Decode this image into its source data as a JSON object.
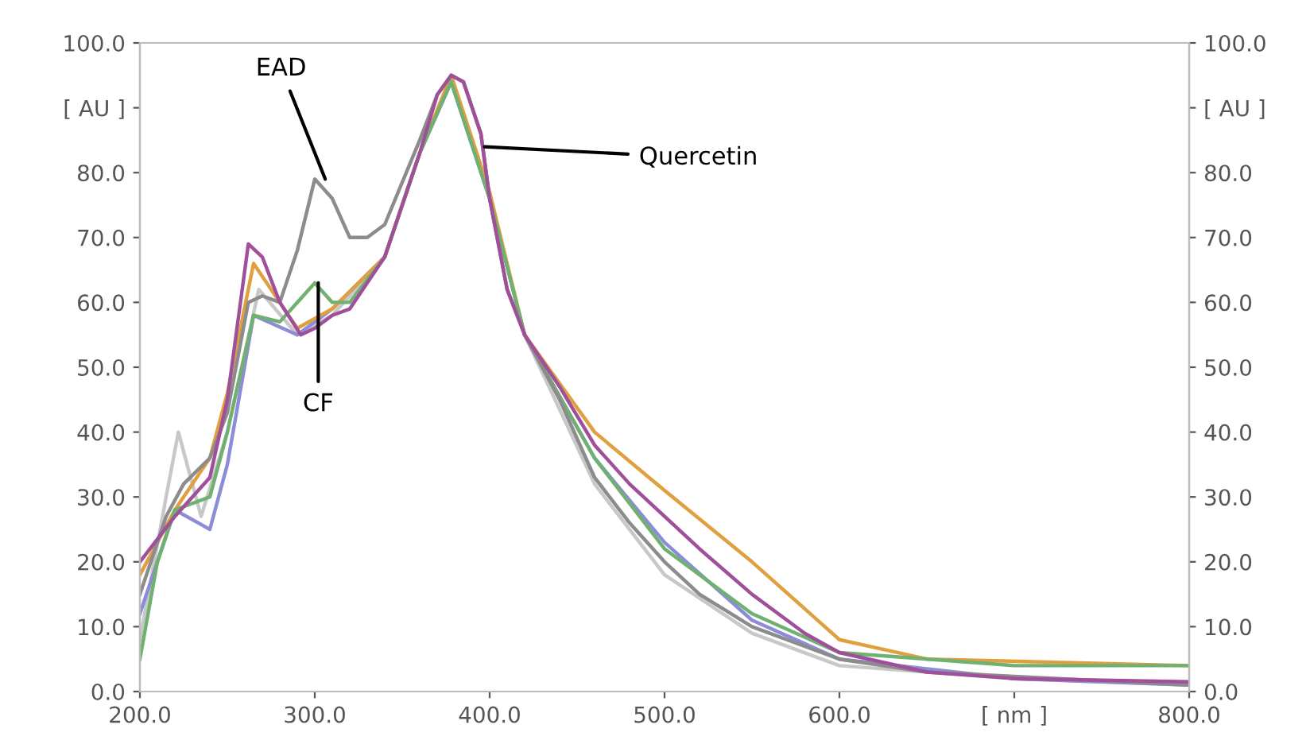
{
  "chart_data": {
    "type": "line",
    "xlim": [
      200,
      800
    ],
    "xticks": [
      {
        "value": 200,
        "label": "200.0"
      },
      {
        "value": 300,
        "label": "300.0"
      },
      {
        "value": 400,
        "label": "400.0"
      },
      {
        "value": 500,
        "label": "500.0"
      },
      {
        "value": 600,
        "label": "600.0"
      },
      {
        "value": 700,
        "label": "[ nm ]"
      },
      {
        "value": 800,
        "label": "800.0"
      }
    ],
    "ylim": [
      0,
      100
    ],
    "yticks": [
      {
        "value": 0,
        "label": "0.0"
      },
      {
        "value": 10,
        "label": "10.0"
      },
      {
        "value": 20,
        "label": "20.0"
      },
      {
        "value": 30,
        "label": "30.0"
      },
      {
        "value": 40,
        "label": "40.0"
      },
      {
        "value": 50,
        "label": "50.0"
      },
      {
        "value": 60,
        "label": "60.0"
      },
      {
        "value": 70,
        "label": "70.0"
      },
      {
        "value": 80,
        "label": "80.0"
      },
      {
        "value": 90,
        "label": "[ AU ]"
      },
      {
        "value": 100,
        "label": "100.0"
      }
    ],
    "y2lim": [
      0,
      100
    ],
    "y2ticks": [
      {
        "value": 0,
        "label": "0.0"
      },
      {
        "value": 10,
        "label": "10.0"
      },
      {
        "value": 20,
        "label": "20.0"
      },
      {
        "value": 30,
        "label": "30.0"
      },
      {
        "value": 40,
        "label": "40.0"
      },
      {
        "value": 50,
        "label": "50.0"
      },
      {
        "value": 60,
        "label": "60.0"
      },
      {
        "value": 70,
        "label": "70.0"
      },
      {
        "value": 80,
        "label": "80.0"
      },
      {
        "value": 90,
        "label": "[ AU ]"
      },
      {
        "value": 100,
        "label": "100.0"
      }
    ],
    "series": [
      {
        "color": "#c8c8c8",
        "x": [
          200,
          215,
          222,
          235,
          250,
          268,
          290,
          310,
          340,
          360,
          378,
          400,
          420,
          460,
          500,
          550,
          600,
          700,
          800
        ],
        "values": [
          8,
          30,
          40,
          27,
          40,
          62,
          55,
          58,
          67,
          83,
          94,
          76,
          55,
          32,
          18,
          9,
          4,
          2,
          1
        ]
      },
      {
        "color": "#8c8cd8",
        "x": [
          200,
          220,
          240,
          250,
          265,
          290,
          310,
          340,
          360,
          378,
          400,
          420,
          460,
          500,
          550,
          600,
          700,
          800
        ],
        "values": [
          12,
          28,
          25,
          35,
          58,
          55,
          59,
          67,
          83,
          94,
          76,
          55,
          36,
          23,
          11,
          5,
          2,
          1
        ]
      },
      {
        "color": "#e0a040",
        "x": [
          200,
          220,
          240,
          250,
          265,
          290,
          310,
          340,
          360,
          378,
          400,
          420,
          460,
          500,
          550,
          600,
          650,
          800
        ],
        "values": [
          18,
          28,
          36,
          46,
          66,
          56,
          59,
          67,
          83,
          95,
          77,
          55,
          40,
          31,
          20,
          8,
          5,
          4
        ]
      },
      {
        "color": "#70b070",
        "x": [
          200,
          210,
          220,
          240,
          250,
          265,
          280,
          290,
          300,
          310,
          320,
          340,
          360,
          378,
          400,
          420,
          460,
          500,
          550,
          600,
          700,
          800
        ],
        "values": [
          5,
          20,
          28,
          30,
          40,
          58,
          57,
          60,
          63,
          60,
          60,
          67,
          83,
          94,
          76,
          55,
          36,
          22,
          12,
          6,
          4,
          4
        ]
      },
      {
        "color": "#8c8c8c",
        "x": [
          200,
          215,
          225,
          240,
          250,
          262,
          270,
          280,
          290,
          300,
          310,
          320,
          330,
          340,
          360,
          370,
          378,
          385,
          395,
          400,
          410,
          420,
          440,
          460,
          480,
          500,
          520,
          550,
          600,
          650,
          800
        ],
        "values": [
          15,
          27,
          32,
          36,
          43,
          60,
          61,
          60,
          68,
          79,
          76,
          70,
          70,
          72,
          85,
          92,
          95,
          94,
          86,
          76,
          62,
          55,
          45,
          33,
          26,
          20,
          15,
          10,
          5,
          3,
          1
        ]
      },
      {
        "color": "#a0509a",
        "x": [
          200,
          220,
          240,
          250,
          262,
          270,
          280,
          292,
          300,
          310,
          320,
          340,
          360,
          370,
          378,
          385,
          395,
          400,
          410,
          420,
          440,
          460,
          480,
          500,
          520,
          550,
          580,
          600,
          650,
          700,
          800
        ],
        "values": [
          20,
          27,
          33,
          45,
          69,
          67,
          60,
          55,
          56,
          58,
          59,
          67,
          83,
          92,
          95,
          94,
          86,
          76,
          62,
          55,
          47,
          38,
          32,
          27,
          22,
          15,
          9,
          6,
          3,
          2,
          1.5
        ]
      }
    ],
    "annotations": [
      {
        "text": "EAD",
        "x": 306,
        "y": 79
      },
      {
        "text": "CF",
        "x": 302,
        "y": 63
      },
      {
        "text": "Quercetin",
        "x": 397,
        "y": 84
      }
    ]
  }
}
